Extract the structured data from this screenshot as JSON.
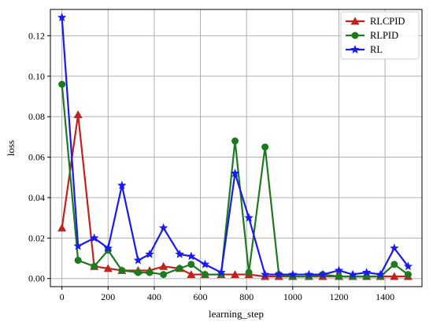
{
  "chart_data": {
    "type": "line",
    "xlabel": "learning_step",
    "ylabel": "loss",
    "xlim": [
      -50,
      1560
    ],
    "ylim": [
      -0.004,
      0.133
    ],
    "xticks": [
      0,
      200,
      400,
      600,
      800,
      1000,
      1200,
      1400
    ],
    "yticks": [
      0.0,
      0.02,
      0.04,
      0.06,
      0.08,
      0.1,
      0.12
    ],
    "grid": true,
    "legend_position": "top-right",
    "x": [
      0,
      70,
      140,
      200,
      260,
      330,
      380,
      440,
      510,
      560,
      620,
      690,
      750,
      810,
      880,
      940,
      1000,
      1070,
      1130,
      1200,
      1260,
      1320,
      1380,
      1440,
      1500
    ],
    "series": [
      {
        "name": "RLCPID",
        "color": "#c0221d",
        "marker": "triangle",
        "values": [
          0.025,
          0.081,
          0.006,
          0.005,
          0.004,
          0.004,
          0.004,
          0.006,
          0.005,
          0.002,
          0.002,
          0.002,
          0.002,
          0.002,
          0.001,
          0.001,
          0.001,
          0.001,
          0.001,
          0.001,
          0.001,
          0.001,
          0.001,
          0.001,
          0.001
        ]
      },
      {
        "name": "RLPID",
        "color": "#1e7a1e",
        "marker": "circle",
        "values": [
          0.096,
          0.009,
          0.006,
          0.014,
          0.004,
          0.003,
          0.003,
          0.002,
          0.005,
          0.007,
          0.002,
          0.002,
          0.068,
          0.003,
          0.065,
          0.002,
          0.001,
          0.001,
          0.002,
          0.001,
          0.001,
          0.001,
          0.001,
          0.007,
          0.002
        ]
      },
      {
        "name": "RL",
        "color": "#1a1aee",
        "marker": "star",
        "values": [
          0.129,
          0.016,
          0.02,
          0.015,
          0.046,
          0.009,
          0.012,
          0.025,
          0.012,
          0.011,
          0.007,
          0.003,
          0.052,
          0.03,
          0.002,
          0.002,
          0.002,
          0.002,
          0.002,
          0.004,
          0.002,
          0.003,
          0.002,
          0.015,
          0.006
        ]
      }
    ]
  }
}
